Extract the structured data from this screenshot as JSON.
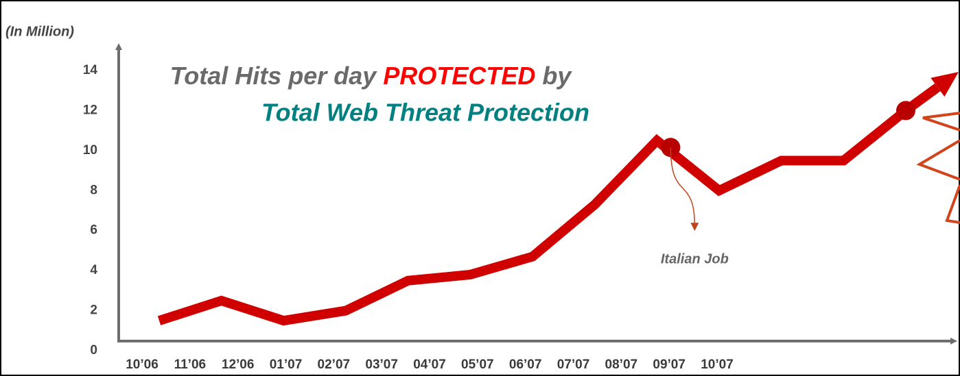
{
  "chart_data": {
    "type": "line",
    "title": {
      "prefix": "Total Hits per day",
      "highlight": "PROTECTED",
      "suffix": "by",
      "line2": "Total Web Threat Protection"
    },
    "y_label": "(In Million)",
    "categories": [
      "10’06",
      "11’06",
      "12’06",
      "01’07",
      "02’07",
      "03’07",
      "04’07",
      "05’07",
      "06’07",
      "07’07",
      "08’07",
      "09’07",
      "10’07"
    ],
    "series": [
      {
        "name": "Total Hits",
        "color": "#d10000",
        "values": [
          1.5,
          2.5,
          1.5,
          2,
          3.5,
          3.8,
          4.7,
          7.3,
          10.5,
          8,
          9.5,
          9.5,
          12
        ]
      }
    ],
    "ylim": [
      0,
      14
    ],
    "yticks": [
      0,
      2,
      4,
      6,
      8,
      10,
      12,
      14
    ],
    "annotation": {
      "text": "Italian Job",
      "category": 8
    }
  }
}
